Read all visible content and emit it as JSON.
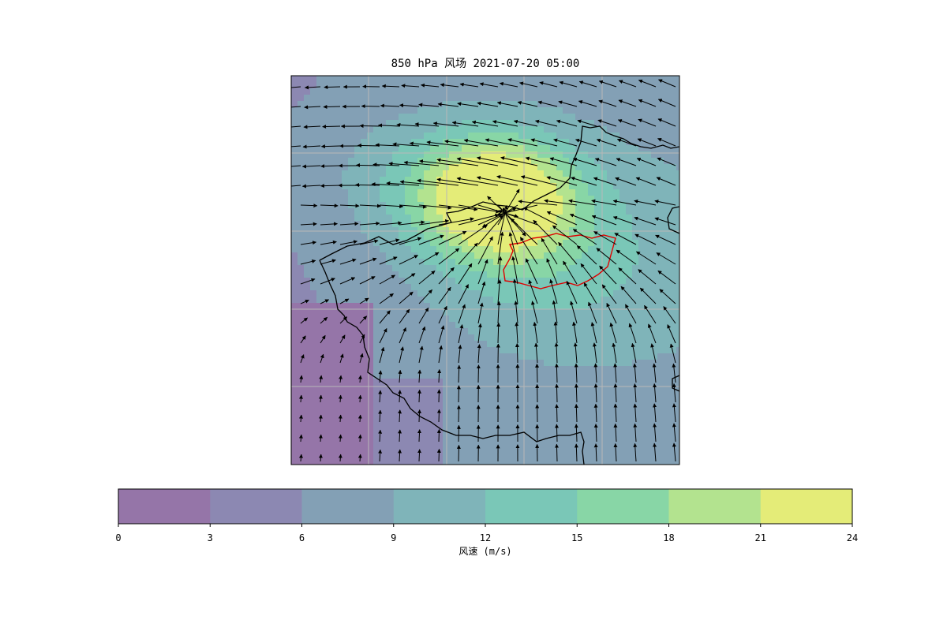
{
  "title": "850 hPa 风场 2021-07-20 05:00",
  "colorbar": {
    "label": "风速 (m/s)",
    "ticks": [
      "0",
      "3",
      "6",
      "9",
      "12",
      "15",
      "18",
      "21",
      "24"
    ],
    "levels": [
      0,
      3,
      6,
      9,
      12,
      15,
      18,
      21,
      24
    ],
    "colors": [
      "#9575a8",
      "#8c88b2",
      "#83a0b5",
      "#7fb4b9",
      "#7ac7b7",
      "#88d6a6",
      "#b3e38f",
      "#e4ec78"
    ]
  },
  "map": {
    "field": "850 hPa wind",
    "valid_time": "2021-07-20 05:00",
    "gridlines": true,
    "wind_max_region": "north-center",
    "highlighted_region_color": "#e00000"
  },
  "chart_data": {
    "type": "heatmap",
    "title": "850 hPa 风场 2021-07-20 05:00",
    "colorbar_label": "风速 (m/s)",
    "vmin": 0,
    "vmax": 24,
    "levels": [
      0,
      3,
      6,
      9,
      12,
      15,
      18,
      21,
      24
    ],
    "vector_field": "wind arrows",
    "max_speed_approx": 22
  }
}
